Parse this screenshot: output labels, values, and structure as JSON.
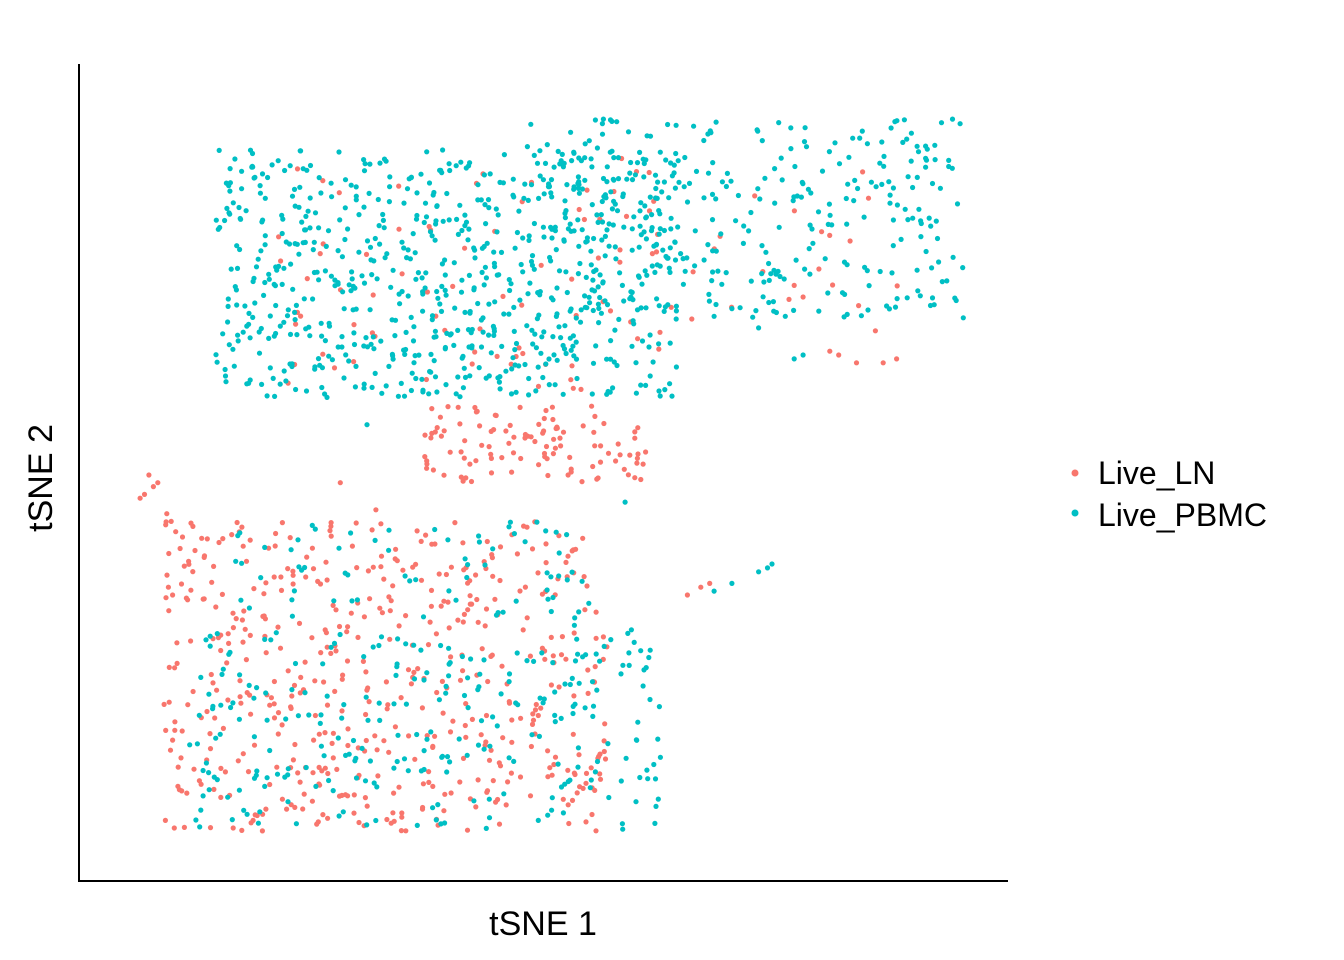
{
  "chart_data": {
    "type": "scatter",
    "title": "",
    "xlabel": "tSNE 1",
    "ylabel": "tSNE 2",
    "xlim": [
      0,
      100
    ],
    "ylim": [
      0,
      100
    ],
    "grid": false,
    "legend": "right",
    "axis_ticks": false,
    "series": [
      {
        "name": "Live_LN",
        "color": "#F8766D",
        "clusters": [
          {
            "x": [
              7,
              57
            ],
            "y": [
              4,
              44
            ],
            "n": 520
          },
          {
            "x": [
              36,
              62
            ],
            "y": [
              49,
              59
            ],
            "n": 110
          },
          {
            "x": [
              20,
              64
            ],
            "y": [
              60,
              92
            ],
            "n": 80
          },
          {
            "x": [
              64,
              90
            ],
            "y": [
              66,
              94
            ],
            "n": 20
          }
        ],
        "points": [
          [
            5.5,
            50
          ],
          [
            6,
            48.5
          ],
          [
            6.5,
            49
          ],
          [
            5,
            47.5
          ],
          [
            4.5,
            47
          ],
          [
            7.5,
            45
          ],
          [
            8,
            44
          ],
          [
            9,
            40.5
          ],
          [
            27,
            49
          ],
          [
            31,
            45.5
          ],
          [
            66,
            34.5
          ],
          [
            67.5,
            35.5
          ],
          [
            68.5,
            36
          ],
          [
            82,
            66
          ],
          [
            83,
            65.5
          ],
          [
            85,
            64.5
          ],
          [
            88,
            64.5
          ],
          [
            89.5,
            65
          ],
          [
            78,
            74.5
          ],
          [
            79,
            73
          ]
        ]
      },
      {
        "name": "Live_PBMC",
        "color": "#00BFC4",
        "clusters": [
          {
            "x": [
              13,
              65
            ],
            "y": [
              60,
              92
            ],
            "n": 720
          },
          {
            "x": [
              48,
              97
            ],
            "y": [
              70,
              96
            ],
            "n": 330
          },
          {
            "x": [
              10,
              63
            ],
            "y": [
              4,
              30
            ],
            "n": 260
          },
          {
            "x": [
              15,
              57
            ],
            "y": [
              30,
              44
            ],
            "n": 70
          }
        ],
        "points": [
          [
            30,
            56.5
          ],
          [
            59,
            46.5
          ],
          [
            69,
            35
          ],
          [
            71,
            36
          ],
          [
            74,
            37.5
          ],
          [
            75,
            38
          ],
          [
            75.5,
            38.5
          ],
          [
            78,
            65
          ],
          [
            79,
            65.5
          ],
          [
            77,
            70.5
          ],
          [
            76,
            71
          ],
          [
            74,
            69
          ],
          [
            71,
            71.5
          ],
          [
            69,
            70.5
          ],
          [
            13,
            16
          ],
          [
            13.5,
            16.5
          ]
        ]
      }
    ]
  }
}
